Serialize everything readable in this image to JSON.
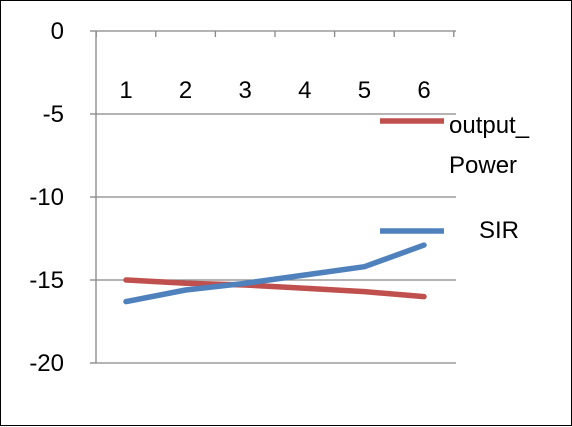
{
  "chart_data": {
    "type": "line",
    "title": "",
    "xlabel": "",
    "ylabel": "",
    "categories": [
      "1",
      "2",
      "3",
      "4",
      "5",
      "6"
    ],
    "x_axis_position": "top",
    "ylim": [
      -20,
      0
    ],
    "yticks": [
      0,
      -5,
      -10,
      -15,
      -20
    ],
    "grid": "horizontal",
    "legend_position": "right",
    "series": [
      {
        "name": "output_\nPower",
        "name_lines": [
          "output_",
          "Power"
        ],
        "color": "#c0504d",
        "values": [
          -15.0,
          -15.2,
          -15.3,
          -15.5,
          -15.7,
          -16.0
        ]
      },
      {
        "name": "SIR",
        "name_lines": [
          "SIR"
        ],
        "color": "#4f81bd",
        "values": [
          -16.3,
          -15.6,
          -15.2,
          -14.7,
          -14.2,
          -12.9
        ]
      }
    ]
  }
}
